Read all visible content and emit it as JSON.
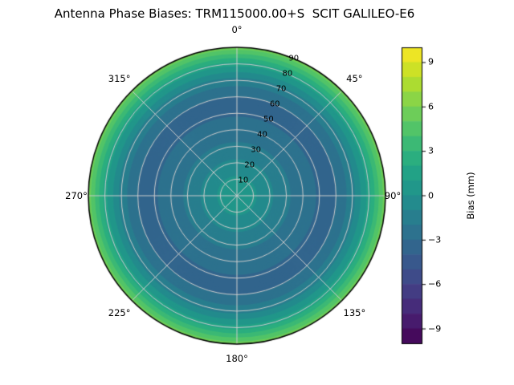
{
  "title": "Antenna Phase Biases: TRM115000.00+S  SCIT GALILEO-E6",
  "chart_data": {
    "type": "heatmap",
    "projection": "polar",
    "title": "Antenna Phase Biases: TRM115000.00+S  SCIT GALILEO-E6",
    "theta_zero_location": "N",
    "theta_direction": "clockwise",
    "symmetry": "azimuthally symmetric (bias depends on zenith angle only)",
    "radial_range": [
      0,
      90
    ],
    "rlabel_position_deg": 22.5,
    "grid": true,
    "grid_color": "#cccccc",
    "background": "#ffffff",
    "angular_ticks": [
      {
        "deg": 0,
        "label": "0°"
      },
      {
        "deg": 45,
        "label": "45°"
      },
      {
        "deg": 90,
        "label": "90°"
      },
      {
        "deg": 135,
        "label": "135°"
      },
      {
        "deg": 180,
        "label": "180°"
      },
      {
        "deg": 225,
        "label": "225°"
      },
      {
        "deg": 270,
        "label": "270°"
      },
      {
        "deg": 315,
        "label": "315°"
      }
    ],
    "radial_ticks": [
      {
        "value": 10,
        "label": "10"
      },
      {
        "value": 20,
        "label": "20"
      },
      {
        "value": 30,
        "label": "30"
      },
      {
        "value": 40,
        "label": "40"
      },
      {
        "value": 50,
        "label": "50"
      },
      {
        "value": 60,
        "label": "60"
      },
      {
        "value": 70,
        "label": "70"
      },
      {
        "value": 80,
        "label": "80"
      },
      {
        "value": 90,
        "label": "90"
      }
    ],
    "colorbar": {
      "label": "Bias (mm)",
      "vmin": -10,
      "vmax": 10,
      "band_step": 1,
      "ticks": [
        9,
        6,
        3,
        0,
        -3,
        -6,
        -9
      ],
      "tick_labels": [
        "9",
        "6",
        "3",
        "0",
        "−3",
        "−6",
        "−9"
      ]
    },
    "colormap": {
      "name": "viridis",
      "stops": [
        "#440154",
        "#482475",
        "#414487",
        "#355f8d",
        "#2a788e",
        "#21918c",
        "#22a884",
        "#44bf70",
        "#7ad151",
        "#bddf26",
        "#fde725"
      ]
    },
    "profile": {
      "zenith_deg": [
        0,
        10,
        20,
        30,
        40,
        50,
        60,
        70,
        80,
        90
      ],
      "bias_mm": [
        0.8,
        0.2,
        -0.8,
        -1.8,
        -2.6,
        -3.1,
        -3.0,
        -1.5,
        1.5,
        5.5
      ]
    }
  }
}
